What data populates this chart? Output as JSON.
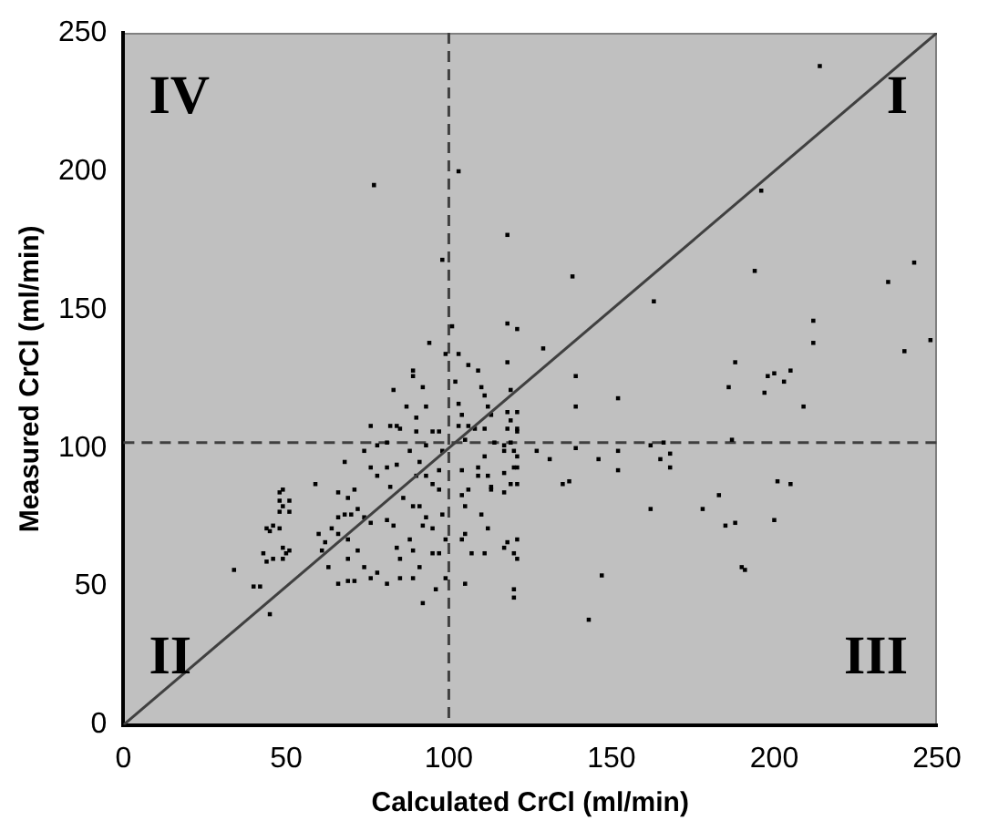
{
  "chart_data": {
    "type": "scatter",
    "xlabel": "Calculated CrCl (ml/min)",
    "ylabel": "Measured CrCl (ml/min)",
    "xlim": [
      0,
      250
    ],
    "ylim": [
      0,
      250
    ],
    "xticks": [
      0,
      50,
      100,
      150,
      200,
      250
    ],
    "yticks": [
      0,
      50,
      100,
      150,
      200,
      250
    ],
    "grid": false,
    "legend": false,
    "marker": "square",
    "ref_lines": [
      {
        "axis": "x",
        "value": 100,
        "color": "#404040",
        "line_style": "dashed"
      },
      {
        "axis": "y",
        "value": 102,
        "color": "#404040",
        "line_style": "dashed"
      }
    ],
    "annotations": [
      "IV",
      "I",
      "II",
      "III"
    ],
    "series": [
      {
        "color": "#000000",
        "x": [
          77,
          103,
          118,
          98,
          101,
          118,
          121,
          94,
          99,
          103,
          106,
          89,
          118,
          214,
          196,
          138,
          163,
          194,
          235,
          243,
          240,
          248,
          212,
          212,
          188,
          200,
          198,
          205,
          129,
          139,
          139,
          152,
          186,
          197,
          203,
          209,
          118,
          121,
          118,
          121,
          117,
          127,
          131,
          139,
          146,
          152,
          152,
          135,
          137,
          117,
          121,
          117,
          121,
          162,
          166,
          168,
          165,
          168,
          187,
          201,
          205,
          183,
          162,
          178,
          185,
          188,
          200,
          190,
          191,
          147,
          143,
          117,
          121,
          121,
          120,
          34,
          40,
          42,
          45,
          44,
          46,
          44,
          46,
          48,
          49,
          48,
          49,
          51,
          48,
          51,
          45,
          48,
          49,
          51,
          50,
          43,
          49,
          59,
          60,
          62,
          64,
          61,
          63,
          66,
          69,
          71,
          66,
          68,
          70,
          72,
          74,
          76,
          66,
          69,
          72,
          69,
          66,
          69,
          71,
          74,
          76,
          78,
          68,
          74,
          76,
          78,
          81,
          76,
          78,
          81,
          82,
          84,
          82,
          84,
          85,
          81,
          83,
          84,
          85,
          88,
          89,
          81,
          85,
          83,
          89,
          92,
          93,
          87,
          90,
          90,
          93,
          95,
          88,
          91,
          90,
          93,
          95,
          86,
          89,
          91,
          93,
          92,
          95,
          89,
          91,
          95,
          96,
          92,
          97,
          99,
          99,
          97,
          98,
          97,
          98,
          97,
          102,
          103,
          104,
          103,
          105,
          106,
          108,
          104,
          104,
          105,
          105,
          104,
          105,
          106,
          109,
          109,
          109,
          110,
          111,
          112,
          113,
          111,
          111,
          112,
          113,
          110,
          112,
          111,
          114,
          117,
          119,
          120,
          120,
          119,
          121,
          121,
          119,
          119,
          118,
          120,
          120,
          113,
          107
        ],
        "values": [
          195,
          200,
          177,
          168,
          144,
          145,
          143,
          138,
          134,
          134,
          130,
          128,
          131,
          238,
          193,
          162,
          153,
          164,
          160,
          167,
          135,
          139,
          146,
          138,
          131,
          127,
          126,
          128,
          136,
          126,
          115,
          118,
          122,
          120,
          124,
          115,
          113,
          113,
          107,
          107,
          101,
          99,
          96,
          100,
          96,
          92,
          99,
          87,
          88,
          91,
          93,
          84,
          87,
          101,
          102,
          98,
          96,
          93,
          103,
          88,
          87,
          83,
          78,
          78,
          72,
          73,
          74,
          57,
          56,
          54,
          38,
          64,
          67,
          60,
          46,
          56,
          50,
          50,
          40,
          59,
          60,
          71,
          72,
          84,
          85,
          81,
          79,
          81,
          77,
          77,
          70,
          71,
          64,
          63,
          62,
          62,
          60,
          87,
          69,
          66,
          71,
          63,
          57,
          51,
          52,
          52,
          75,
          76,
          76,
          78,
          75,
          73,
          69,
          67,
          63,
          60,
          84,
          82,
          85,
          57,
          53,
          55,
          95,
          99,
          108,
          101,
          102,
          93,
          90,
          93,
          86,
          94,
          108,
          108,
          107,
          74,
          72,
          64,
          60,
          67,
          63,
          51,
          53,
          121,
          126,
          122,
          115,
          115,
          111,
          106,
          101,
          106,
          99,
          95,
          90,
          90,
          87,
          82,
          79,
          79,
          75,
          72,
          71,
          53,
          57,
          62,
          49,
          44,
          62,
          53,
          67,
          85,
          76,
          92,
          99,
          106,
          124,
          116,
          112,
          108,
          103,
          108,
          107,
          92,
          83,
          79,
          69,
          67,
          51,
          85,
          90,
          93,
          128,
          122,
          119,
          115,
          112,
          107,
          97,
          90,
          85,
          76,
          71,
          62,
          102,
          99,
          102,
          99,
          93,
          87,
          97,
          106,
          110,
          121,
          66,
          62,
          49,
          86,
          62
        ]
      },
      {
        "type": "line",
        "color": "#404040",
        "marker": "none",
        "x": [
          0,
          250
        ],
        "values": [
          0,
          250
        ]
      }
    ]
  }
}
